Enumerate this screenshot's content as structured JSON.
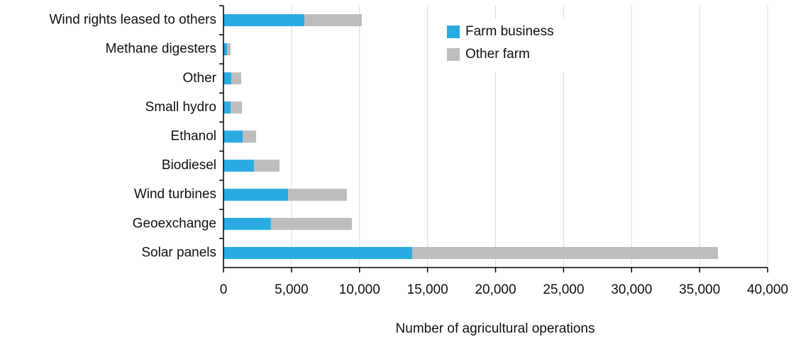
{
  "chart_data": {
    "type": "stacked-barh",
    "categories": [
      "Wind rights leased to others",
      "Methane digesters",
      "Other",
      "Small hydro",
      "Ethanol",
      "Biodiesel",
      "Wind turbines",
      "Geoexchange",
      "Solar panels"
    ],
    "series": [
      {
        "name": "Farm business",
        "color": "#29abe2",
        "values": [
          5950,
          260,
          570,
          520,
          1410,
          2240,
          4750,
          3490,
          13870
        ]
      },
      {
        "name": "Other farm",
        "color": "#bdbdbd",
        "values": [
          4220,
          260,
          730,
          840,
          990,
          1880,
          4320,
          5950,
          22480
        ]
      }
    ],
    "xlabel": "Number of agricultural operations",
    "xlim": [
      0,
      40000
    ],
    "xticks": [
      0,
      {
        "value": 5000,
        "label": "5,000"
      },
      {
        "value": 10000,
        "label": "10,000"
      },
      {
        "value": 15000,
        "label": "15,000"
      },
      {
        "value": 20000,
        "label": "20,000"
      },
      {
        "value": 25000,
        "label": "25,000"
      },
      {
        "value": 30000,
        "label": "30,000"
      },
      {
        "value": 35000,
        "label": "35,000"
      },
      {
        "value": 40000,
        "label": "40,000"
      }
    ],
    "grid": true,
    "legend": "top"
  }
}
